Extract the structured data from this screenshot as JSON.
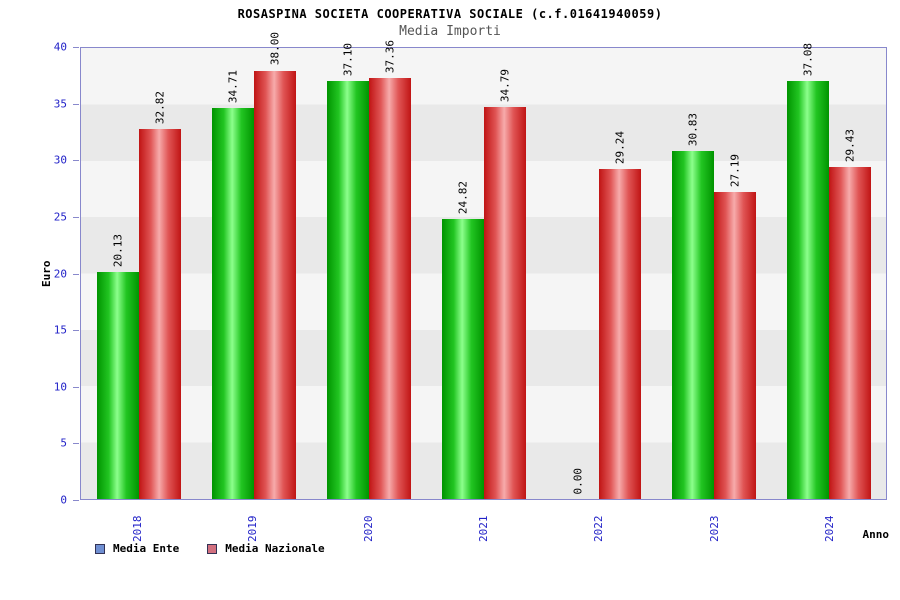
{
  "title": "ROSASPINA SOCIETA COOPERATIVA SOCIALE (c.f.01641940059)",
  "subtitle": "Media Importi",
  "chart_data": {
    "type": "bar",
    "categories": [
      "2018",
      "2019",
      "2020",
      "2021",
      "2022",
      "2023",
      "2024"
    ],
    "series": [
      {
        "name": "Media Ente",
        "values": [
          20.13,
          34.71,
          37.1,
          24.82,
          0.0,
          30.83,
          37.08
        ],
        "color": "#22c522",
        "color_light": "#8cff8c",
        "color_dark": "#009400",
        "legend_swatch": "#6f8fd2"
      },
      {
        "name": "Media Nazionale",
        "values": [
          32.82,
          38.0,
          37.36,
          34.79,
          29.24,
          27.19,
          29.43
        ],
        "color": "#e05555",
        "color_light": "#f7abab",
        "color_dark": "#c01414",
        "legend_swatch": "#d2707f"
      }
    ],
    "xlabel": "Anno",
    "ylabel": "Euro",
    "ylim": [
      0,
      40
    ],
    "yticks": [
      0,
      5,
      10,
      15,
      20,
      25,
      30,
      35,
      40
    ],
    "grid": "alternating-horizontal-bands",
    "legend_position": "bottom-left",
    "value_label_format": "two-decimals",
    "value_label_rotation": "vertical",
    "x_tick_rotation": "vertical"
  },
  "colors": {
    "axis_text": "#2323c8",
    "plot_border": "#8888cc",
    "band_a": "#e9e9e9",
    "band_b": "#f5f5f5",
    "subtitle": "#555555",
    "value_label": "#000000"
  }
}
